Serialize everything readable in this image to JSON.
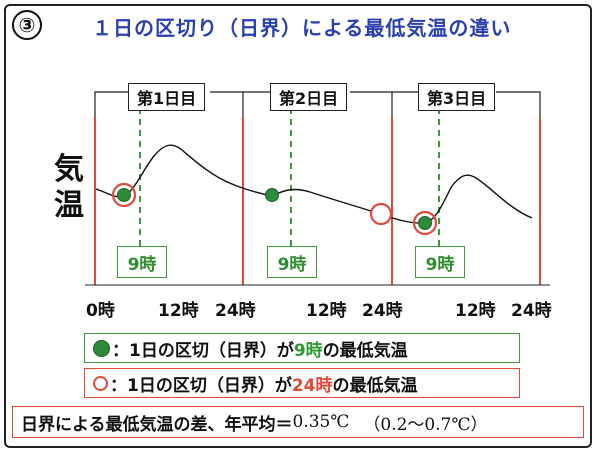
{
  "badge": "③",
  "title": "１日の区切り（日界）による最低気温の違い",
  "y_label": "気温",
  "days": [
    {
      "label": "第1日目"
    },
    {
      "label": "第2日目"
    },
    {
      "label": "第3日目"
    }
  ],
  "hour_marker": "9時",
  "x_ticks": [
    "0時",
    "12時",
    "24時",
    "12時",
    "24時",
    "12時",
    "24時"
  ],
  "legend": {
    "filled": {
      "prefix": "：1日の区切（日界）が ",
      "hour": "9時",
      "suffix": " の最低気温"
    },
    "ring": {
      "prefix": "：1日の区切（日界）が ",
      "hour": "24時",
      "suffix": " の最低気温"
    }
  },
  "footer": {
    "text": "日界による最低気温の差、年平均＝",
    "value": "0.35℃",
    "range": "（0.2〜0.7℃）"
  },
  "colors": {
    "day_boundary": "#e04a3a",
    "nine_oclock": "#3a9a3a",
    "curve": "#111111",
    "title": "#2a3fb0"
  }
}
